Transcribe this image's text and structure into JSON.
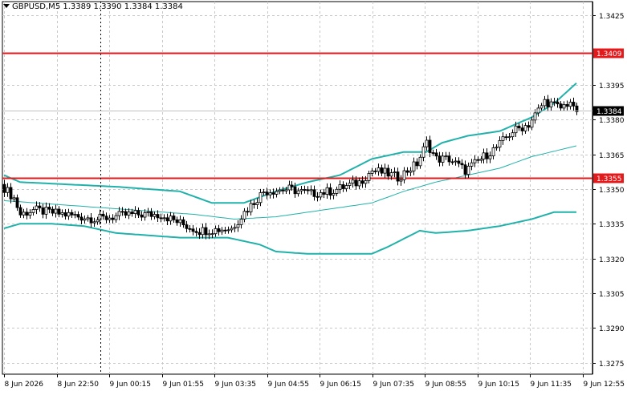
{
  "header": {
    "symbol": "GBPUSD,M5",
    "ohlc": "1.3389 1.3390 1.3384 1.3384"
  },
  "colors": {
    "grid": "#c8c8c8",
    "level_line": "#e31a1c",
    "band": "#20b2aa",
    "candle_up": "#ffffff",
    "candle_down": "#000000",
    "current_price_bg": "#000000"
  },
  "chart_data": {
    "type": "candlestick",
    "ylim": [
      1.327,
      1.3431
    ],
    "y_ticks": [
      "1.3425",
      "1.3395",
      "1.3380",
      "1.3365",
      "1.3350",
      "1.3335",
      "1.3320",
      "1.3305",
      "1.3290",
      "1.3275"
    ],
    "x_ticks": [
      "8 Jun 2026",
      "8 Jun 22:50",
      "9 Jun 00:15",
      "9 Jun 01:55",
      "9 Jun 03:35",
      "9 Jun 04:55",
      "9 Jun 06:15",
      "9 Jun 07:35",
      "9 Jun 08:55",
      "9 Jun 10:15",
      "9 Jun 11:35",
      "9 Jun 12:55"
    ],
    "levels": [
      {
        "value": 1.3409,
        "label": "1.3409"
      },
      {
        "value": 1.3355,
        "label": "1.3355"
      }
    ],
    "current_price": {
      "value": 1.3384,
      "label": "1.3384"
    },
    "crosshair_bar_index": 29,
    "bars_total": 180,
    "series": [
      {
        "name": "upper_band",
        "points": [
          [
            0,
            1.3356
          ],
          [
            5,
            1.3353
          ],
          [
            20,
            1.3352
          ],
          [
            35,
            1.3351
          ],
          [
            55,
            1.3349
          ],
          [
            65,
            1.3344
          ],
          [
            75,
            1.3344
          ],
          [
            85,
            1.3349
          ],
          [
            95,
            1.3353
          ],
          [
            105,
            1.3356
          ],
          [
            115,
            1.3363
          ],
          [
            125,
            1.3366
          ],
          [
            132,
            1.3366
          ],
          [
            137,
            1.337
          ],
          [
            145,
            1.3373
          ],
          [
            155,
            1.3375
          ],
          [
            160,
            1.3378
          ],
          [
            165,
            1.3381
          ],
          [
            172,
            1.3387
          ],
          [
            180,
            1.3397
          ]
        ]
      },
      {
        "name": "middle_band",
        "points": [
          [
            0,
            1.3345
          ],
          [
            20,
            1.3343
          ],
          [
            40,
            1.3341
          ],
          [
            60,
            1.3339
          ],
          [
            72,
            1.3337
          ],
          [
            85,
            1.3338
          ],
          [
            100,
            1.3341
          ],
          [
            115,
            1.3344
          ],
          [
            125,
            1.3349
          ],
          [
            135,
            1.3353
          ],
          [
            145,
            1.3356
          ],
          [
            155,
            1.3359
          ],
          [
            165,
            1.3364
          ],
          [
            180,
            1.3369
          ]
        ]
      },
      {
        "name": "lower_band",
        "points": [
          [
            0,
            1.3333
          ],
          [
            5,
            1.3335
          ],
          [
            15,
            1.3335
          ],
          [
            25,
            1.3334
          ],
          [
            35,
            1.3331
          ],
          [
            55,
            1.3329
          ],
          [
            70,
            1.3329
          ],
          [
            80,
            1.3326
          ],
          [
            85,
            1.3323
          ],
          [
            95,
            1.3322
          ],
          [
            115,
            1.3322
          ],
          [
            120,
            1.3325
          ],
          [
            130,
            1.3332
          ],
          [
            135,
            1.3331
          ],
          [
            145,
            1.3332
          ],
          [
            155,
            1.3334
          ],
          [
            165,
            1.3337
          ],
          [
            172,
            1.334
          ],
          [
            180,
            1.334
          ]
        ]
      }
    ],
    "price_path": [
      [
        0,
        1.3352
      ],
      [
        4,
        1.3346
      ],
      [
        6,
        1.3339
      ],
      [
        10,
        1.3341
      ],
      [
        20,
        1.3339
      ],
      [
        30,
        1.3337
      ],
      [
        40,
        1.3339
      ],
      [
        50,
        1.3339
      ],
      [
        58,
        1.3334
      ],
      [
        62,
        1.3332
      ],
      [
        72,
        1.3333
      ],
      [
        76,
        1.334
      ],
      [
        82,
        1.3349
      ],
      [
        90,
        1.335
      ],
      [
        97,
        1.3348
      ],
      [
        103,
        1.3349
      ],
      [
        112,
        1.3353
      ],
      [
        116,
        1.3358
      ],
      [
        120,
        1.3357
      ],
      [
        124,
        1.3355
      ],
      [
        130,
        1.3361
      ],
      [
        133,
        1.337
      ],
      [
        136,
        1.3363
      ],
      [
        140,
        1.3363
      ],
      [
        145,
        1.3358
      ],
      [
        150,
        1.3363
      ],
      [
        155,
        1.3368
      ],
      [
        160,
        1.3375
      ],
      [
        165,
        1.3378
      ],
      [
        170,
        1.3388
      ],
      [
        175,
        1.3385
      ],
      [
        178,
        1.3388
      ],
      [
        179,
        1.3384
      ]
    ],
    "title": "",
    "xlabel": "",
    "ylabel": ""
  }
}
